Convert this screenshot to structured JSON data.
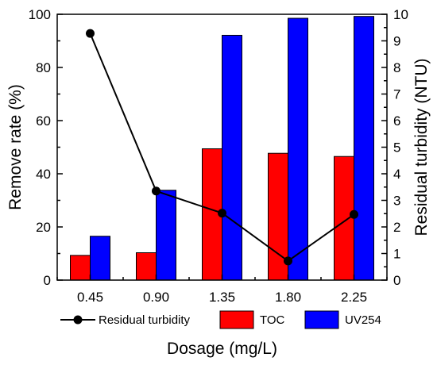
{
  "chart_data": {
    "type": "bar",
    "categories": [
      "0.45",
      "0.90",
      "1.35",
      "1.80",
      "2.25"
    ],
    "xlabel": "Dosage (mg/L)",
    "ylabel": "Remove rate (%)",
    "y2label": "Residual turbidity (NTU)",
    "ylim": [
      0,
      100
    ],
    "y2lim": [
      0,
      10
    ],
    "yticks": [
      "0",
      "20",
      "40",
      "60",
      "80",
      "100"
    ],
    "y2ticks": [
      "0",
      "1",
      "2",
      "3",
      "4",
      "5",
      "6",
      "7",
      "8",
      "9",
      "10"
    ],
    "grid": false,
    "legend_position": "bottom",
    "series": [
      {
        "name": "TOC",
        "kind": "bar",
        "axis": "left",
        "color": "#ff0000",
        "values": [
          9.3,
          10.3,
          49.4,
          47.7,
          46.5
        ]
      },
      {
        "name": "UV254",
        "kind": "bar",
        "axis": "left",
        "color": "#0000ff",
        "values": [
          16.5,
          33.8,
          92.1,
          98.5,
          99.2
        ]
      },
      {
        "name": "Residual turbidity",
        "kind": "line",
        "axis": "right",
        "color": "#000000",
        "values": [
          9.28,
          3.35,
          2.52,
          0.72,
          2.47
        ]
      }
    ]
  }
}
